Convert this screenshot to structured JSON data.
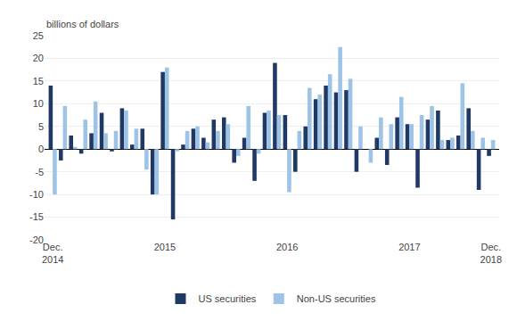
{
  "chart_data": {
    "type": "bar",
    "ylabel": "billions of dollars",
    "categories": [
      "Dec.\n2014",
      null,
      null,
      null,
      null,
      null,
      null,
      null,
      null,
      null,
      null,
      "2015",
      null,
      null,
      null,
      null,
      null,
      null,
      null,
      null,
      null,
      null,
      null,
      "2016",
      null,
      null,
      null,
      null,
      null,
      null,
      null,
      null,
      null,
      null,
      null,
      "2017",
      null,
      null,
      null,
      null,
      null,
      null,
      null,
      "Dec.\n2018"
    ],
    "series": [
      {
        "name": "US securities",
        "color": "#1F3864",
        "values": [
          14.0,
          -2.5,
          3.0,
          -1.0,
          3.5,
          8.0,
          -0.5,
          9.0,
          1.0,
          4.5,
          -10.0,
          17.0,
          -15.5,
          1.0,
          4.5,
          2.5,
          6.5,
          7.0,
          -3.0,
          2.5,
          -7.0,
          8.0,
          19.0,
          7.5,
          -5.0,
          5.0,
          11.0,
          14.0,
          12.5,
          13.0,
          -5.0,
          0.0,
          2.5,
          -3.5,
          7.0,
          5.5,
          -8.5,
          6.5,
          8.5,
          2.0,
          3.0,
          9.0,
          -9.0,
          -1.5
        ]
      },
      {
        "name": "Non-US securities",
        "color": "#9DC3E6",
        "values": [
          -10.0,
          9.5,
          0.5,
          6.5,
          10.5,
          3.5,
          4.0,
          8.5,
          4.5,
          -4.5,
          -10.0,
          18.0,
          -0.5,
          4.0,
          5.0,
          1.5,
          4.0,
          5.5,
          -1.5,
          9.5,
          -1.0,
          8.5,
          7.5,
          -9.5,
          4.0,
          13.5,
          12.0,
          16.5,
          22.5,
          15.5,
          5.0,
          -3.0,
          7.0,
          5.5,
          11.5,
          5.5,
          7.5,
          9.5,
          2.0,
          2.5,
          14.5,
          4.0,
          2.5,
          2.0
        ]
      }
    ],
    "ylim": [
      -20,
      25
    ],
    "yticks": [
      -20,
      -15,
      -10,
      -5,
      0,
      5,
      10,
      15,
      20,
      25
    ],
    "grid": true,
    "legend": "bottom"
  }
}
